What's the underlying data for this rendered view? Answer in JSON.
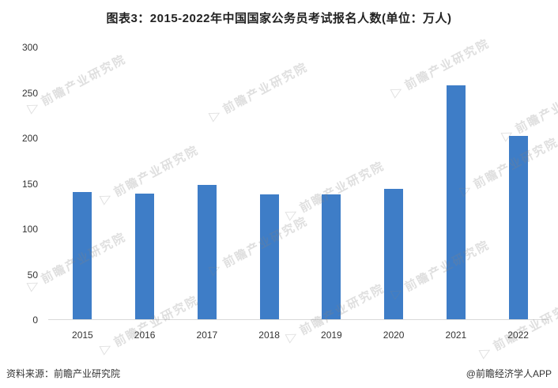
{
  "chart_data": {
    "type": "bar",
    "title": "图表3：2015-2022年中国国家公务员考试报名人数(单位：万人)",
    "categories": [
      "2015",
      "2016",
      "2017",
      "2018",
      "2019",
      "2020",
      "2021",
      "2022"
    ],
    "values": [
      141,
      139,
      149,
      138,
      138,
      144,
      258,
      203
    ],
    "xlabel": "",
    "ylabel": "",
    "ylim": [
      0,
      300
    ],
    "yticks": [
      0,
      50,
      100,
      150,
      200,
      250,
      300
    ],
    "bar_color": "#3e7dc7",
    "grid": false,
    "legend": false
  },
  "watermark": {
    "text": "前瞻产业研究院",
    "icon": "triangle-logo"
  },
  "footer": {
    "source": "资料来源：前瞻产业研究院",
    "credit": "@前瞻经济学人APP"
  }
}
